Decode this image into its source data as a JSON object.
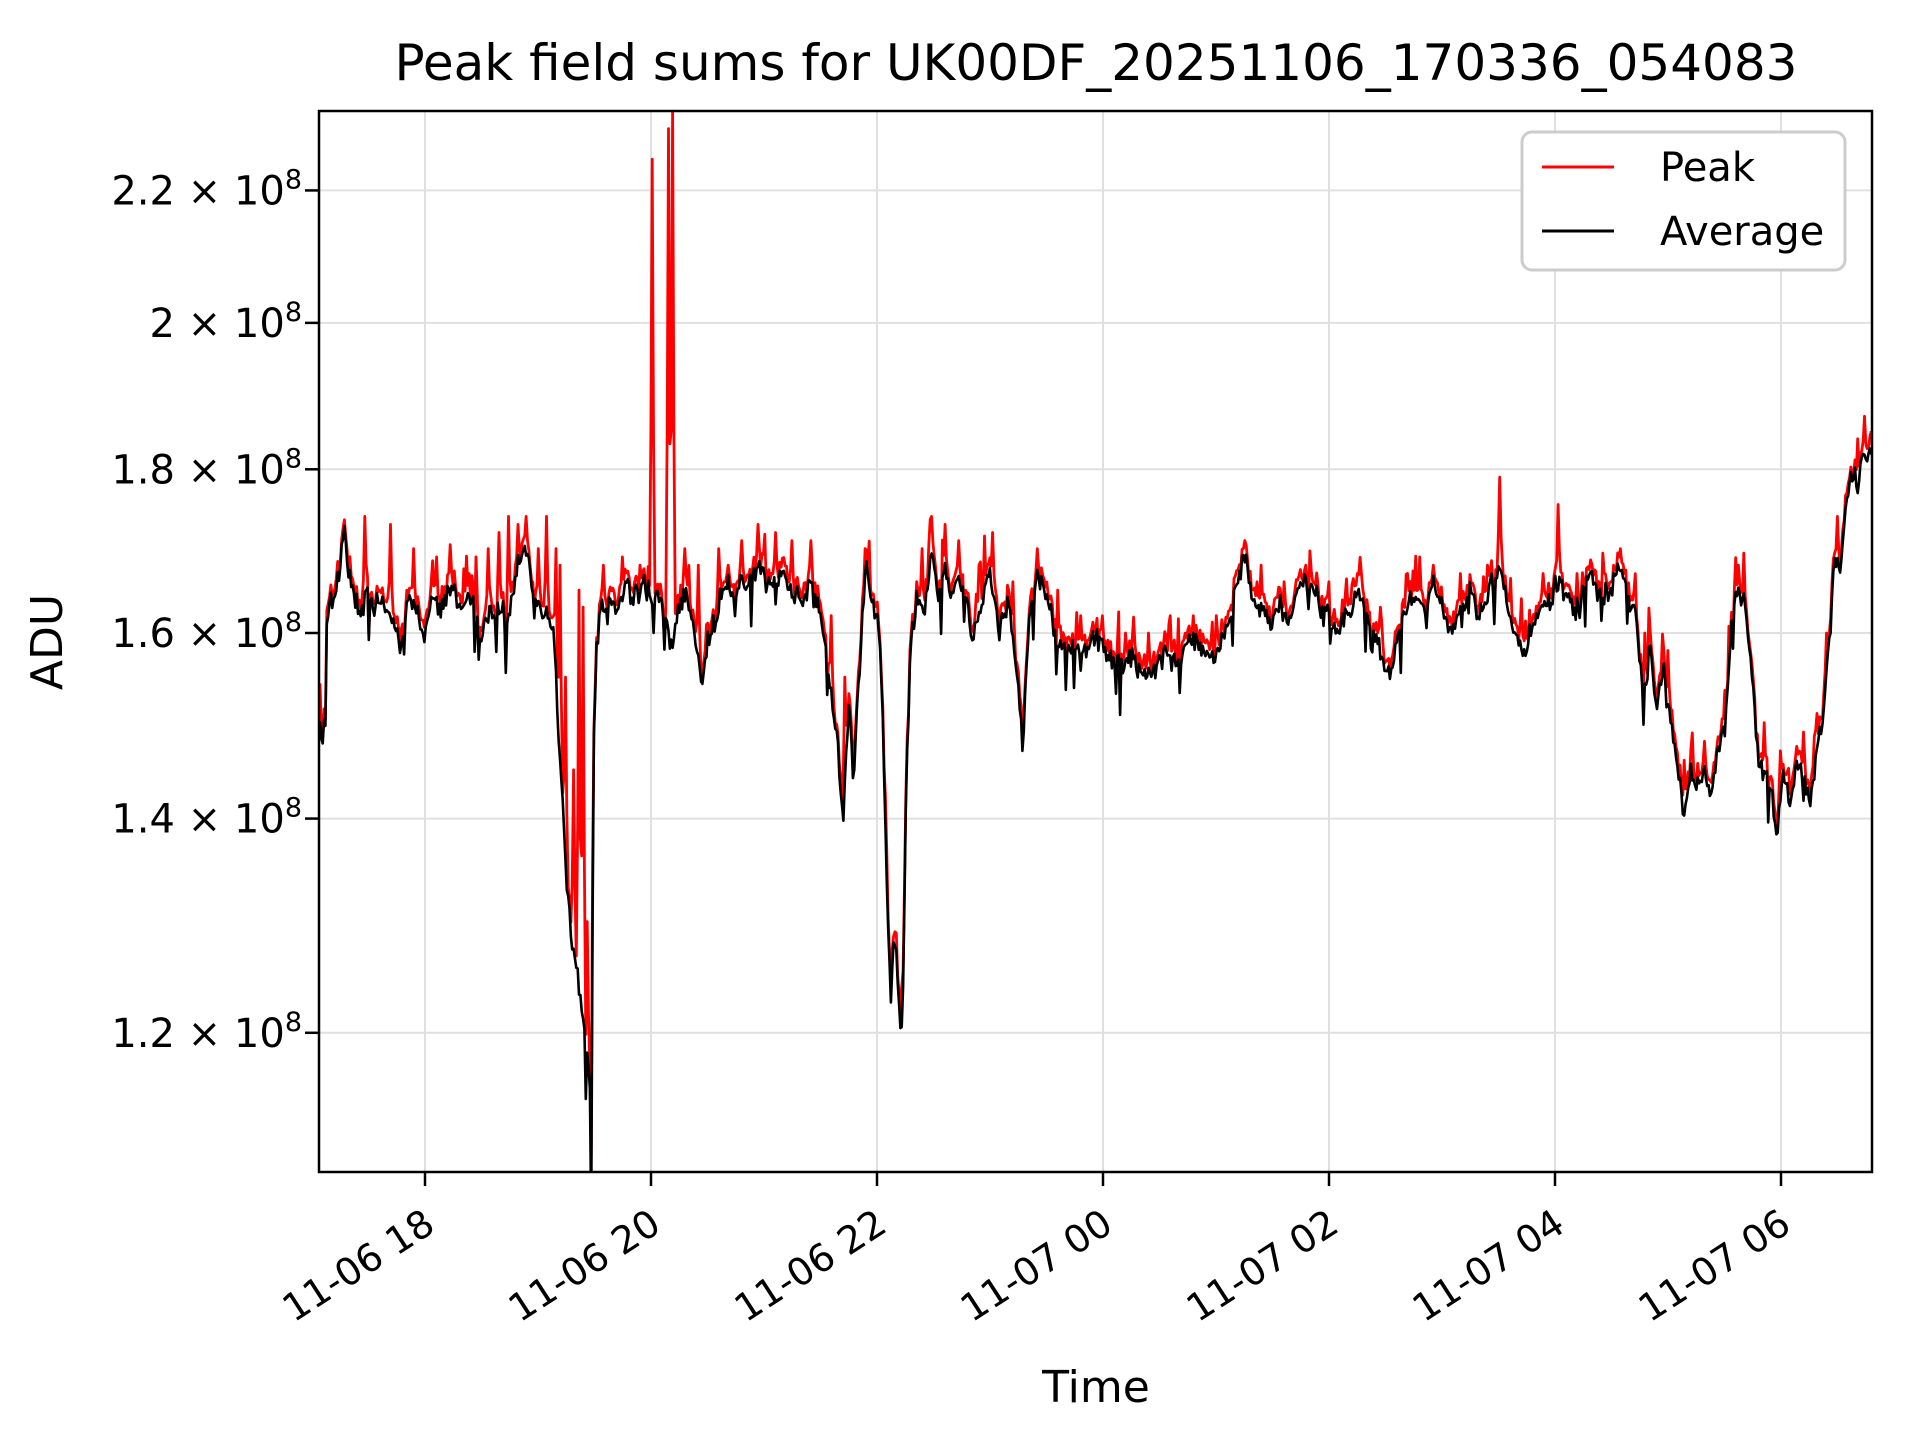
{
  "colors": {
    "peak": "#ff0000",
    "average": "#000000",
    "grid": "#e0e0e0",
    "frame": "#000000",
    "background": "#ffffff",
    "legend_border": "#cccccc"
  },
  "chart_data": {
    "type": "line",
    "title": "Peak field sums for UK00DF_20251106_170336_054083",
    "xlabel": "Time",
    "ylabel": "ADU",
    "yscale": "log",
    "grid": true,
    "ylim_adu": [
      108000000,
      233000000
    ],
    "x_range_note": "x in hours after 2025-11-06 17:00; data spans ~17:04 to ~06:48 next day",
    "legend": {
      "position": "upper right",
      "entries": [
        {
          "label": "Peak",
          "color": "#ff0000"
        },
        {
          "label": "Average",
          "color": "#000000"
        }
      ]
    },
    "x_axis": {
      "ticks": [
        {
          "label": "11-06 18",
          "t": 1
        },
        {
          "label": "11-06 20",
          "t": 3
        },
        {
          "label": "11-06 22",
          "t": 5
        },
        {
          "label": "11-07 00",
          "t": 7
        },
        {
          "label": "11-07 02",
          "t": 9
        },
        {
          "label": "11-07 04",
          "t": 11
        },
        {
          "label": "11-07 06",
          "t": 13
        }
      ]
    },
    "y_ticks": [
      {
        "mantissa": "2.2",
        "exponent": "8",
        "value": 2.2
      },
      {
        "mantissa": "2",
        "exponent": "8",
        "value": 2.0
      },
      {
        "mantissa": "1.8",
        "exponent": "8",
        "value": 1.8
      },
      {
        "mantissa": "1.6",
        "exponent": "8",
        "value": 1.6
      },
      {
        "mantissa": "1.4",
        "exponent": "8",
        "value": 1.4
      },
      {
        "mantissa": "1.2",
        "exponent": "8",
        "value": 1.2
      }
    ],
    "value_units": "1e8 ADU",
    "time_units": "hours since 2025-11-06 17:00",
    "t_start": 0.071,
    "t_end": 13.805,
    "average_anchors": [
      [
        0.071,
        1.49
      ],
      [
        0.09,
        1.46
      ],
      [
        0.105,
        1.49
      ],
      [
        0.115,
        1.45
      ],
      [
        0.13,
        1.6
      ],
      [
        0.155,
        1.63
      ],
      [
        0.19,
        1.635
      ],
      [
        0.23,
        1.655
      ],
      [
        0.29,
        1.71
      ],
      [
        0.33,
        1.65
      ],
      [
        0.38,
        1.63
      ],
      [
        0.43,
        1.62
      ],
      [
        0.47,
        1.64
      ],
      [
        0.52,
        1.625
      ],
      [
        0.57,
        1.63
      ],
      [
        0.62,
        1.645
      ],
      [
        0.66,
        1.625
      ],
      [
        0.7,
        1.63
      ],
      [
        0.74,
        1.62
      ],
      [
        0.78,
        1.59
      ],
      [
        0.82,
        1.63
      ],
      [
        0.86,
        1.645
      ],
      [
        0.9,
        1.63
      ],
      [
        0.94,
        1.62
      ],
      [
        0.99,
        1.585
      ],
      [
        1.03,
        1.625
      ],
      [
        1.08,
        1.635
      ],
      [
        1.13,
        1.62
      ],
      [
        1.18,
        1.63
      ],
      [
        1.24,
        1.645
      ],
      [
        1.3,
        1.62
      ],
      [
        1.37,
        1.635
      ],
      [
        1.43,
        1.63
      ],
      [
        1.5,
        1.6
      ],
      [
        1.56,
        1.635
      ],
      [
        1.62,
        1.625
      ],
      [
        1.68,
        1.64
      ],
      [
        1.74,
        1.63
      ],
      [
        1.8,
        1.66
      ],
      [
        1.86,
        1.7
      ],
      [
        1.9,
        1.715
      ],
      [
        1.94,
        1.67
      ],
      [
        1.99,
        1.64
      ],
      [
        2.04,
        1.615
      ],
      [
        2.09,
        1.63
      ],
      [
        2.14,
        1.6
      ],
      [
        2.18,
        1.5
      ],
      [
        2.22,
        1.41
      ],
      [
        2.26,
        1.33
      ],
      [
        2.3,
        1.285
      ],
      [
        2.34,
        1.26
      ],
      [
        2.38,
        1.225
      ],
      [
        2.42,
        1.195
      ],
      [
        2.45,
        1.175
      ],
      [
        2.462,
        1.16
      ],
      [
        2.47,
        1.05
      ],
      [
        2.478,
        1.17
      ],
      [
        2.49,
        1.48
      ],
      [
        2.52,
        1.6
      ],
      [
        2.56,
        1.635
      ],
      [
        2.62,
        1.645
      ],
      [
        2.7,
        1.63
      ],
      [
        2.78,
        1.645
      ],
      [
        2.86,
        1.635
      ],
      [
        2.94,
        1.64
      ],
      [
        3.01,
        1.63
      ],
      [
        3.08,
        1.645
      ],
      [
        3.15,
        1.605
      ],
      [
        3.19,
        1.58
      ],
      [
        3.24,
        1.625
      ],
      [
        3.3,
        1.645
      ],
      [
        3.38,
        1.62
      ],
      [
        3.45,
        1.54
      ],
      [
        3.52,
        1.6
      ],
      [
        3.58,
        1.63
      ],
      [
        3.65,
        1.655
      ],
      [
        3.72,
        1.64
      ],
      [
        3.8,
        1.66
      ],
      [
        3.88,
        1.645
      ],
      [
        3.95,
        1.67
      ],
      [
        4.02,
        1.645
      ],
      [
        4.1,
        1.66
      ],
      [
        4.18,
        1.68
      ],
      [
        4.26,
        1.65
      ],
      [
        4.34,
        1.635
      ],
      [
        4.42,
        1.66
      ],
      [
        4.5,
        1.62
      ],
      [
        4.58,
        1.565
      ],
      [
        4.64,
        1.51
      ],
      [
        4.7,
        1.4
      ],
      [
        4.75,
        1.53
      ],
      [
        4.8,
        1.445
      ],
      [
        4.85,
        1.56
      ],
      [
        4.9,
        1.67
      ],
      [
        4.95,
        1.625
      ],
      [
        5.0,
        1.63
      ],
      [
        5.04,
        1.555
      ],
      [
        5.08,
        1.36
      ],
      [
        5.12,
        1.235
      ],
      [
        5.16,
        1.285
      ],
      [
        5.2,
        1.195
      ],
      [
        5.225,
        1.18
      ],
      [
        5.26,
        1.44
      ],
      [
        5.3,
        1.6
      ],
      [
        5.35,
        1.655
      ],
      [
        5.42,
        1.635
      ],
      [
        5.48,
        1.7
      ],
      [
        5.54,
        1.645
      ],
      [
        5.6,
        1.68
      ],
      [
        5.66,
        1.635
      ],
      [
        5.72,
        1.665
      ],
      [
        5.78,
        1.625
      ],
      [
        5.85,
        1.585
      ],
      [
        5.92,
        1.63
      ],
      [
        6.0,
        1.665
      ],
      [
        6.08,
        1.625
      ],
      [
        6.16,
        1.64
      ],
      [
        6.24,
        1.555
      ],
      [
        6.29,
        1.465
      ],
      [
        6.35,
        1.62
      ],
      [
        6.42,
        1.67
      ],
      [
        6.5,
        1.645
      ],
      [
        6.58,
        1.605
      ],
      [
        6.66,
        1.585
      ],
      [
        6.75,
        1.595
      ],
      [
        6.85,
        1.575
      ],
      [
        6.95,
        1.59
      ],
      [
        7.05,
        1.575
      ],
      [
        7.15,
        1.555
      ],
      [
        7.25,
        1.565
      ],
      [
        7.35,
        1.545
      ],
      [
        7.45,
        1.56
      ],
      [
        7.55,
        1.585
      ],
      [
        7.65,
        1.56
      ],
      [
        7.75,
        1.575
      ],
      [
        7.85,
        1.585
      ],
      [
        7.95,
        1.57
      ],
      [
        8.05,
        1.59
      ],
      [
        8.15,
        1.63
      ],
      [
        8.25,
        1.7
      ],
      [
        8.32,
        1.665
      ],
      [
        8.4,
        1.625
      ],
      [
        8.48,
        1.605
      ],
      [
        8.56,
        1.635
      ],
      [
        8.64,
        1.605
      ],
      [
        8.72,
        1.64
      ],
      [
        8.8,
        1.66
      ],
      [
        8.88,
        1.645
      ],
      [
        8.96,
        1.62
      ],
      [
        9.05,
        1.605
      ],
      [
        9.15,
        1.62
      ],
      [
        9.25,
        1.64
      ],
      [
        9.35,
        1.61
      ],
      [
        9.45,
        1.585
      ],
      [
        9.54,
        1.555
      ],
      [
        9.62,
        1.6
      ],
      [
        9.7,
        1.64
      ],
      [
        9.78,
        1.62
      ],
      [
        9.85,
        1.63
      ],
      [
        9.92,
        1.66
      ],
      [
        10.0,
        1.635
      ],
      [
        10.08,
        1.605
      ],
      [
        10.16,
        1.63
      ],
      [
        10.24,
        1.65
      ],
      [
        10.32,
        1.62
      ],
      [
        10.4,
        1.64
      ],
      [
        10.51,
        1.66
      ],
      [
        10.58,
        1.635
      ],
      [
        10.66,
        1.605
      ],
      [
        10.74,
        1.585
      ],
      [
        10.82,
        1.62
      ],
      [
        10.9,
        1.64
      ],
      [
        10.98,
        1.66
      ],
      [
        11.03,
        1.67
      ],
      [
        11.1,
        1.645
      ],
      [
        11.18,
        1.625
      ],
      [
        11.26,
        1.645
      ],
      [
        11.34,
        1.66
      ],
      [
        11.42,
        1.635
      ],
      [
        11.5,
        1.66
      ],
      [
        11.58,
        1.68
      ],
      [
        11.65,
        1.645
      ],
      [
        11.72,
        1.605
      ],
      [
        11.78,
        1.525
      ],
      [
        11.84,
        1.58
      ],
      [
        11.9,
        1.51
      ],
      [
        11.96,
        1.56
      ],
      [
        12.02,
        1.505
      ],
      [
        12.08,
        1.445
      ],
      [
        12.14,
        1.4
      ],
      [
        12.2,
        1.44
      ],
      [
        12.26,
        1.42
      ],
      [
        12.32,
        1.45
      ],
      [
        12.38,
        1.43
      ],
      [
        12.44,
        1.46
      ],
      [
        12.5,
        1.48
      ],
      [
        12.56,
        1.6
      ],
      [
        12.62,
        1.665
      ],
      [
        12.68,
        1.63
      ],
      [
        12.74,
        1.55
      ],
      [
        12.8,
        1.47
      ],
      [
        12.86,
        1.45
      ],
      [
        12.92,
        1.44
      ],
      [
        12.96,
        1.385
      ],
      [
        13.02,
        1.46
      ],
      [
        13.08,
        1.44
      ],
      [
        13.14,
        1.47
      ],
      [
        13.2,
        1.44
      ],
      [
        13.26,
        1.43
      ],
      [
        13.32,
        1.465
      ],
      [
        13.38,
        1.52
      ],
      [
        13.44,
        1.62
      ],
      [
        13.48,
        1.71
      ],
      [
        13.52,
        1.665
      ],
      [
        13.56,
        1.72
      ],
      [
        13.6,
        1.77
      ],
      [
        13.64,
        1.8
      ],
      [
        13.68,
        1.78
      ],
      [
        13.72,
        1.835
      ],
      [
        13.76,
        1.805
      ],
      [
        13.805,
        1.825
      ]
    ],
    "peak_spikes": [
      [
        0.3,
        1.67
      ],
      [
        0.47,
        1.74
      ],
      [
        0.69,
        1.73
      ],
      [
        0.9,
        1.7
      ],
      [
        1.1,
        1.69
      ],
      [
        1.22,
        1.705
      ],
      [
        1.45,
        1.69
      ],
      [
        1.56,
        1.7
      ],
      [
        1.65,
        1.72
      ],
      [
        1.74,
        1.74
      ],
      [
        1.82,
        1.73
      ],
      [
        1.9,
        1.74
      ],
      [
        2.0,
        1.7
      ],
      [
        2.08,
        1.74
      ],
      [
        2.16,
        1.7
      ],
      [
        2.2,
        1.68
      ],
      [
        2.24,
        1.55
      ],
      [
        2.31,
        1.45
      ],
      [
        2.36,
        1.65
      ],
      [
        2.4,
        1.63
      ],
      [
        2.43,
        1.3
      ],
      [
        2.58,
        1.68
      ],
      [
        2.75,
        1.69
      ],
      [
        2.9,
        1.68
      ],
      [
        3.01,
        2.25
      ],
      [
        3.15,
        2.3
      ],
      [
        3.19,
        2.33
      ],
      [
        3.3,
        1.7
      ],
      [
        3.42,
        1.68
      ],
      [
        3.6,
        1.7
      ],
      [
        3.8,
        1.71
      ],
      [
        3.95,
        1.73
      ],
      [
        4.1,
        1.72
      ],
      [
        4.25,
        1.71
      ],
      [
        4.42,
        1.71
      ],
      [
        4.6,
        1.62
      ],
      [
        4.72,
        1.55
      ],
      [
        4.9,
        1.7
      ],
      [
        5.07,
        1.42
      ],
      [
        5.22,
        1.24
      ],
      [
        5.4,
        1.7
      ],
      [
        5.48,
        1.74
      ],
      [
        5.6,
        1.73
      ],
      [
        5.72,
        1.71
      ],
      [
        5.9,
        1.68
      ],
      [
        6.02,
        1.72
      ],
      [
        6.2,
        1.66
      ],
      [
        6.42,
        1.7
      ],
      [
        6.6,
        1.65
      ],
      [
        6.8,
        1.62
      ],
      [
        7.0,
        1.62
      ],
      [
        7.2,
        1.6
      ],
      [
        7.4,
        1.6
      ],
      [
        7.6,
        1.62
      ],
      [
        7.8,
        1.62
      ],
      [
        8.0,
        1.62
      ],
      [
        8.25,
        1.71
      ],
      [
        8.4,
        1.68
      ],
      [
        8.6,
        1.66
      ],
      [
        8.8,
        1.68
      ],
      [
        9.0,
        1.66
      ],
      [
        9.25,
        1.67
      ],
      [
        9.45,
        1.63
      ],
      [
        9.7,
        1.67
      ],
      [
        9.92,
        1.68
      ],
      [
        10.16,
        1.67
      ],
      [
        10.4,
        1.68
      ],
      [
        10.51,
        1.79
      ],
      [
        10.7,
        1.64
      ],
      [
        10.9,
        1.67
      ],
      [
        11.03,
        1.755
      ],
      [
        11.2,
        1.67
      ],
      [
        11.42,
        1.69
      ],
      [
        11.58,
        1.7
      ],
      [
        11.8,
        1.6
      ],
      [
        12.0,
        1.58
      ],
      [
        12.14,
        1.46
      ],
      [
        12.32,
        1.48
      ],
      [
        12.5,
        1.52
      ],
      [
        12.62,
        1.68
      ],
      [
        12.85,
        1.5
      ],
      [
        13.0,
        1.47
      ],
      [
        13.2,
        1.49
      ],
      [
        13.4,
        1.6
      ],
      [
        13.5,
        1.74
      ],
      [
        13.62,
        1.8
      ],
      [
        13.68,
        1.84
      ],
      [
        13.74,
        1.87
      ],
      [
        13.8,
        1.85
      ]
    ]
  }
}
